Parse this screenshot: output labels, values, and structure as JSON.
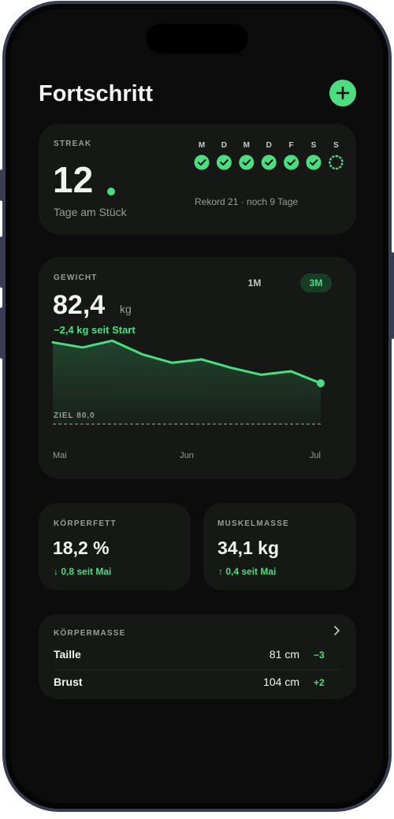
{
  "header": {
    "title": "Fortschritt"
  },
  "streak": {
    "label": "STREAK",
    "count": "12",
    "caption": "Tage am Stück",
    "days": [
      {
        "label": "M",
        "done": true
      },
      {
        "label": "D",
        "done": true
      },
      {
        "label": "M",
        "done": true
      },
      {
        "label": "D",
        "done": true
      },
      {
        "label": "F",
        "done": true
      },
      {
        "label": "S",
        "done": true
      },
      {
        "label": "S",
        "done": false
      }
    ],
    "record": "Rekord 21 · noch 9 Tage"
  },
  "weight": {
    "label": "GEWICHT",
    "ranges": [
      "1M",
      "3M"
    ],
    "active_range": 1,
    "value": "82,4",
    "unit": "kg",
    "change": "−2,4 kg seit Start"
  },
  "chart_data": {
    "type": "line",
    "color": "#4ade80",
    "x": [
      0,
      1,
      2,
      3,
      4,
      5,
      6,
      7,
      8,
      9
    ],
    "values": [
      84.8,
      84.5,
      84.9,
      84.1,
      83.6,
      83.8,
      83.3,
      82.9,
      83.1,
      82.4
    ],
    "xlim": [
      0,
      9
    ],
    "xticks": [
      {
        "value": 0,
        "label": "Mai"
      },
      {
        "value": 4.5,
        "label": "Jun"
      },
      {
        "value": 9,
        "label": "Jul"
      }
    ],
    "ylim": [
      80,
      85
    ],
    "goal": {
      "value": 80,
      "label": "ZIEL 80,0"
    }
  },
  "body_fat": {
    "label": "KÖRPERFETT",
    "value": "18,2 %",
    "change": "↓ 0,8 seit Mai"
  },
  "muscle": {
    "label": "MUSKELMASSE",
    "value": "34,1 kg",
    "change": "↑ 0,4 seit Mai"
  },
  "measurements": {
    "label": "KÖRPERMASSE",
    "rows": [
      [
        "Taille",
        "81 cm",
        "−3"
      ],
      [
        "Brust",
        "104 cm",
        "+2"
      ]
    ]
  }
}
